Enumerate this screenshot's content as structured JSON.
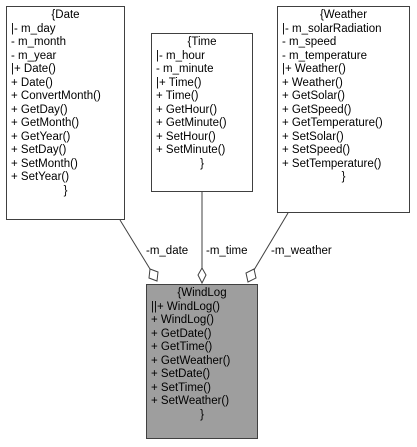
{
  "classes": {
    "date": {
      "title": "{Date",
      "lines": [
        "|- m_day",
        "- m_month",
        "- m_year",
        "|+ Date()",
        "+ Date()",
        "+ ConvertMonth()",
        "+ GetDay()",
        "+ GetMonth()",
        "+ GetYear()",
        "+ SetDay()",
        "+ SetMonth()",
        "+ SetYear()"
      ],
      "close": "}"
    },
    "time": {
      "title": "{Time",
      "lines": [
        "|- m_hour",
        "- m_minute",
        "|+ Time()",
        "+ Time()",
        "+ GetHour()",
        "+ GetMinute()",
        "+ SetHour()",
        "+ SetMinute()"
      ],
      "close": "}"
    },
    "weather": {
      "title": "{Weather",
      "lines": [
        "|- m_solarRadiation",
        "- m_speed",
        "- m_temperature",
        "|+ Weather()",
        "+ Weather()",
        "+ GetSolar()",
        "+ GetSpeed()",
        "+ GetTemperature()",
        "+ SetSolar()",
        "+ SetSpeed()",
        "+ SetTemperature()"
      ],
      "close": "}"
    },
    "windlog": {
      "title": "{WindLog",
      "lines": [
        "||+ WindLog()",
        "+ WindLog()",
        "+ GetDate()",
        "+ GetTime()",
        "+ GetWeather()",
        "+ SetDate()",
        "+ SetTime()",
        "+ SetWeather()"
      ],
      "close": "}"
    }
  },
  "edges": {
    "date": "-m_date",
    "time": "-m_time",
    "weather": "-m_weather"
  },
  "colors": {
    "highlight_fill": "#9e9e9e",
    "border": "#404040",
    "edge": "#404040"
  }
}
